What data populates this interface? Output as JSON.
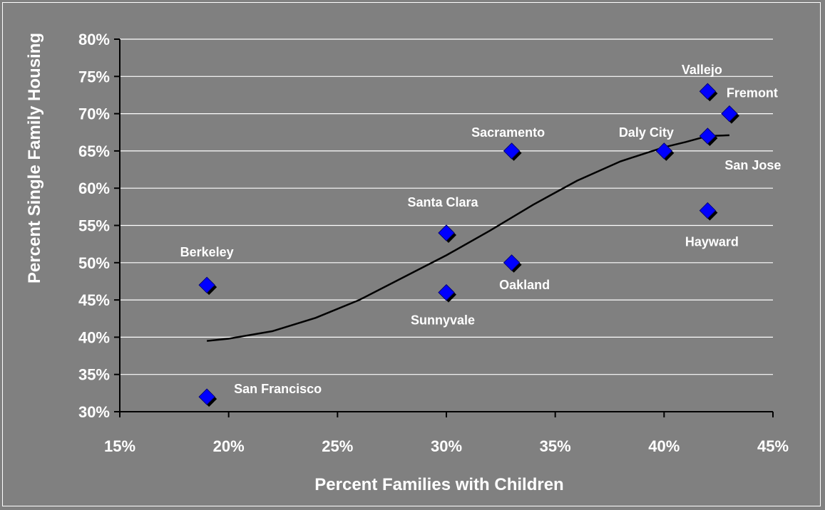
{
  "chart_data": {
    "type": "scatter",
    "title": "",
    "xlabel": "Percent Families with Children",
    "ylabel": "Percent Single Family Housing",
    "xlim": [
      15,
      45
    ],
    "ylim": [
      30,
      80
    ],
    "x_ticks": [
      15,
      20,
      25,
      30,
      35,
      40,
      45
    ],
    "y_ticks": [
      30,
      35,
      40,
      45,
      50,
      55,
      60,
      65,
      70,
      75,
      80
    ],
    "tick_suffix": "%",
    "grid": "horizontal",
    "colors": {
      "background": "#808080",
      "grid": "#ffffff",
      "marker": "#0000ff",
      "trendline": "#000000",
      "text": "#ffffff"
    },
    "points": [
      {
        "label": "Berkeley",
        "x": 19,
        "y": 47
      },
      {
        "label": "San Francisco",
        "x": 19,
        "y": 32
      },
      {
        "label": "Santa Clara",
        "x": 30,
        "y": 54
      },
      {
        "label": "Sunnyvale",
        "x": 30,
        "y": 46
      },
      {
        "label": "Sacramento",
        "x": 33,
        "y": 65
      },
      {
        "label": "Oakland",
        "x": 33,
        "y": 50
      },
      {
        "label": "Daly City",
        "x": 40,
        "y": 65
      },
      {
        "label": "Vallejo",
        "x": 42,
        "y": 73
      },
      {
        "label": "San Jose",
        "x": 42,
        "y": 67
      },
      {
        "label": "Hayward",
        "x": 42,
        "y": 57
      },
      {
        "label": "Fremont",
        "x": 43,
        "y": 70
      }
    ],
    "trendline": [
      {
        "x": 19,
        "y": 39.5
      },
      {
        "x": 20,
        "y": 39.8
      },
      {
        "x": 22,
        "y": 40.8
      },
      {
        "x": 24,
        "y": 42.6
      },
      {
        "x": 26,
        "y": 45.0
      },
      {
        "x": 28,
        "y": 48.0
      },
      {
        "x": 30,
        "y": 51.0
      },
      {
        "x": 32,
        "y": 54.3
      },
      {
        "x": 34,
        "y": 57.8
      },
      {
        "x": 36,
        "y": 61.0
      },
      {
        "x": 38,
        "y": 63.6
      },
      {
        "x": 40,
        "y": 65.5
      },
      {
        "x": 41,
        "y": 66.2
      },
      {
        "x": 42,
        "y": 67.0
      },
      {
        "x": 43,
        "y": 67.1
      }
    ]
  }
}
